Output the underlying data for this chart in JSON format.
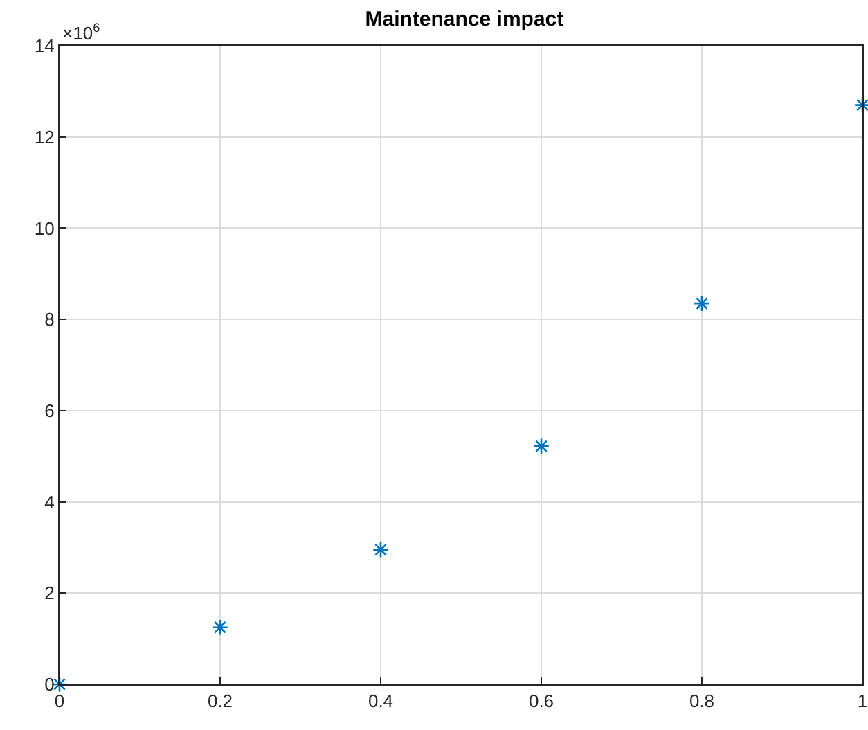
{
  "chart_data": {
    "type": "scatter",
    "title": "Maintenance impact",
    "x": [
      0,
      0.2,
      0.4,
      0.6,
      0.8,
      1
    ],
    "values": [
      0,
      1.25,
      2.95,
      5.22,
      8.35,
      12.7
    ],
    "color": "#0072bd",
    "marker": "cross",
    "grid": true,
    "xlim": [
      0,
      1
    ],
    "xticks": [
      0,
      0.2,
      0.4,
      0.6,
      0.8,
      1
    ],
    "ylim": [
      0,
      14
    ],
    "yticks": [
      0,
      2,
      4,
      6,
      8,
      10,
      12,
      14
    ],
    "annotations": [
      "×10$^{6}$"
    ]
  }
}
